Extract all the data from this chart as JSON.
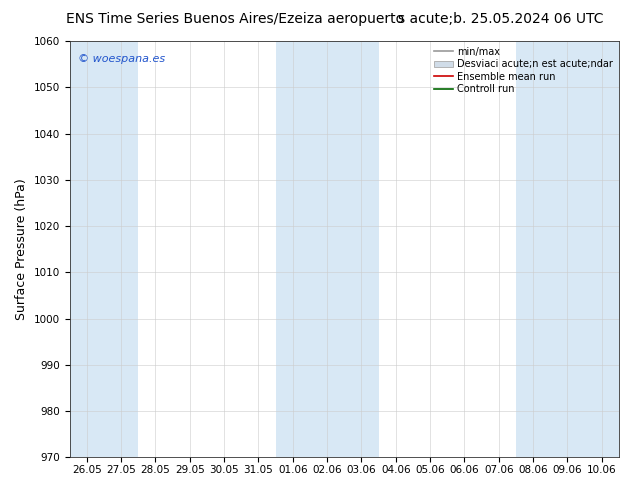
{
  "title_left": "ENS Time Series Buenos Aires/Ezeiza aeropuerto",
  "title_right": "s acute;b. 25.05.2024 06 UTC",
  "ylabel": "Surface Pressure (hPa)",
  "ylim": [
    970,
    1060
  ],
  "yticks": [
    970,
    980,
    990,
    1000,
    1010,
    1020,
    1030,
    1040,
    1050,
    1060
  ],
  "x_labels": [
    "26.05",
    "27.05",
    "28.05",
    "29.05",
    "30.05",
    "31.05",
    "01.06",
    "02.06",
    "03.06",
    "04.06",
    "05.06",
    "06.06",
    "07.06",
    "08.06",
    "09.06",
    "10.06"
  ],
  "n_ticks": 16,
  "background_color": "#ffffff",
  "plot_bg_color": "#ffffff",
  "strip_color": "#d8e8f5",
  "title_fontsize": 10,
  "tick_fontsize": 7.5,
  "ylabel_fontsize": 9,
  "watermark": "© woespana.es",
  "legend_minmax_color": "#999999",
  "legend_band_facecolor": "#d0dce8",
  "legend_band_edgecolor": "#aaaaaa",
  "legend_ensemble_color": "#cc0000",
  "legend_control_color": "#006600",
  "strip_indices": [
    0,
    1,
    6,
    7,
    8,
    13,
    14,
    15
  ]
}
